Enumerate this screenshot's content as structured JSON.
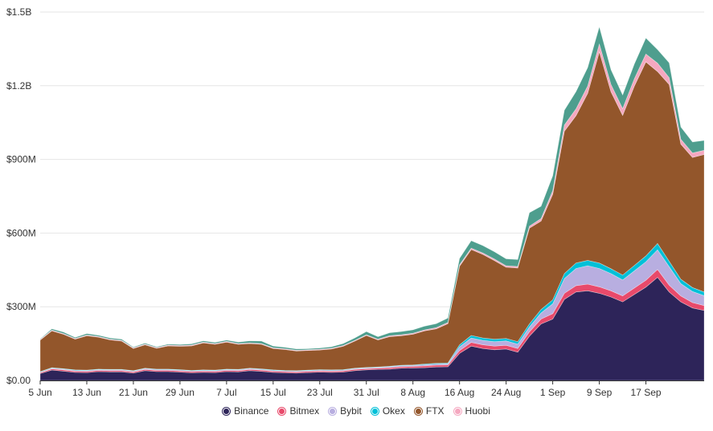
{
  "chart_data": {
    "type": "area",
    "stacked": true,
    "title": "",
    "xlabel": "",
    "ylabel": "",
    "ylim": [
      0,
      1500000000
    ],
    "y_ticks": [
      {
        "value": 0,
        "label": "$0.00"
      },
      {
        "value": 300000000,
        "label": "$300M"
      },
      {
        "value": 600000000,
        "label": "$600M"
      },
      {
        "value": 900000000,
        "label": "$900M"
      },
      {
        "value": 1200000000,
        "label": "$1.2B"
      },
      {
        "value": 1500000000,
        "label": "$1.5B"
      }
    ],
    "x_ticks": [
      {
        "date": "2021-06-05",
        "label": "5 Jun"
      },
      {
        "date": "2021-06-13",
        "label": "13 Jun"
      },
      {
        "date": "2021-06-21",
        "label": "21 Jun"
      },
      {
        "date": "2021-06-29",
        "label": "29 Jun"
      },
      {
        "date": "2021-07-07",
        "label": "7 Jul"
      },
      {
        "date": "2021-07-15",
        "label": "15 Jul"
      },
      {
        "date": "2021-07-23",
        "label": "23 Jul"
      },
      {
        "date": "2021-07-31",
        "label": "31 Jul"
      },
      {
        "date": "2021-08-08",
        "label": "8 Aug"
      },
      {
        "date": "2021-08-16",
        "label": "16 Aug"
      },
      {
        "date": "2021-08-24",
        "label": "24 Aug"
      },
      {
        "date": "2021-09-01",
        "label": "1 Sep"
      },
      {
        "date": "2021-09-09",
        "label": "9 Sep"
      },
      {
        "date": "2021-09-17",
        "label": "17 Sep"
      }
    ],
    "x_range": [
      "2021-06-05",
      "2021-09-27"
    ],
    "legend_position": "bottom-center",
    "units": "M USD",
    "x": [
      "2021-06-05",
      "2021-06-07",
      "2021-06-09",
      "2021-06-11",
      "2021-06-13",
      "2021-06-15",
      "2021-06-17",
      "2021-06-19",
      "2021-06-21",
      "2021-06-23",
      "2021-06-25",
      "2021-06-27",
      "2021-06-29",
      "2021-07-01",
      "2021-07-03",
      "2021-07-05",
      "2021-07-07",
      "2021-07-09",
      "2021-07-11",
      "2021-07-13",
      "2021-07-15",
      "2021-07-17",
      "2021-07-19",
      "2021-07-21",
      "2021-07-23",
      "2021-07-25",
      "2021-07-27",
      "2021-07-29",
      "2021-07-31",
      "2021-08-02",
      "2021-08-04",
      "2021-08-06",
      "2021-08-08",
      "2021-08-10",
      "2021-08-12",
      "2021-08-14",
      "2021-08-16",
      "2021-08-18",
      "2021-08-20",
      "2021-08-22",
      "2021-08-24",
      "2021-08-26",
      "2021-08-28",
      "2021-08-30",
      "2021-09-01",
      "2021-09-03",
      "2021-09-05",
      "2021-09-07",
      "2021-09-09",
      "2021-09-11",
      "2021-09-13",
      "2021-09-15",
      "2021-09-17",
      "2021-09-19",
      "2021-09-21",
      "2021-09-23",
      "2021-09-25",
      "2021-09-27"
    ],
    "series": [
      {
        "name": "Binance",
        "color": "#2d2459",
        "values": [
          28,
          42,
          38,
          33,
          32,
          36,
          35,
          35,
          30,
          40,
          36,
          36,
          34,
          31,
          33,
          32,
          36,
          35,
          40,
          37,
          33,
          31,
          30,
          32,
          34,
          33,
          34,
          40,
          43,
          45,
          46,
          50,
          51,
          52,
          55,
          56,
          110,
          140,
          130,
          125,
          128,
          115,
          180,
          230,
          250,
          330,
          360,
          365,
          355,
          340,
          320,
          350,
          380,
          420,
          360,
          320,
          295,
          285
        ]
      },
      {
        "name": "Bitmex",
        "color": "#e84a6b",
        "values": [
          4,
          5,
          5,
          5,
          5,
          5,
          5,
          5,
          5,
          5,
          5,
          5,
          5,
          5,
          5,
          5,
          5,
          5,
          5,
          5,
          5,
          5,
          5,
          5,
          5,
          5,
          5,
          5,
          5,
          5,
          6,
          6,
          6,
          7,
          7,
          7,
          12,
          15,
          15,
          15,
          15,
          15,
          18,
          20,
          22,
          25,
          26,
          27,
          26,
          25,
          24,
          26,
          28,
          32,
          28,
          24,
          22,
          20
        ]
      },
      {
        "name": "Bybit",
        "color": "#b8aee0",
        "values": [
          2,
          3,
          3,
          3,
          3,
          3,
          3,
          3,
          3,
          3,
          3,
          3,
          3,
          3,
          3,
          3,
          3,
          3,
          3,
          3,
          3,
          3,
          3,
          3,
          3,
          3,
          3,
          3,
          3,
          3,
          4,
          4,
          4,
          5,
          5,
          5,
          15,
          18,
          18,
          18,
          18,
          18,
          20,
          25,
          40,
          60,
          70,
          75,
          75,
          70,
          65,
          70,
          75,
          80,
          75,
          50,
          45,
          40
        ]
      },
      {
        "name": "Okex",
        "color": "#00c0d8",
        "values": [
          2,
          2,
          2,
          2,
          2,
          2,
          2,
          2,
          2,
          2,
          2,
          2,
          2,
          2,
          2,
          2,
          2,
          2,
          2,
          2,
          2,
          2,
          2,
          2,
          2,
          2,
          2,
          2,
          2,
          2,
          2,
          2,
          2,
          3,
          3,
          3,
          8,
          10,
          10,
          10,
          10,
          10,
          12,
          14,
          16,
          20,
          22,
          22,
          22,
          20,
          20,
          22,
          24,
          26,
          22,
          18,
          16,
          15
        ]
      },
      {
        "name": "FTX",
        "color": "#93562b",
        "values": [
          128,
          150,
          140,
          125,
          140,
          130,
          120,
          115,
          90,
          95,
          85,
          95,
          95,
          100,
          110,
          105,
          110,
          102,
          100,
          100,
          87,
          85,
          80,
          80,
          80,
          85,
          95,
          110,
          130,
          110,
          120,
          120,
          125,
          135,
          140,
          160,
          320,
          350,
          340,
          320,
          290,
          300,
          390,
          360,
          430,
          580,
          600,
          680,
          860,
          720,
          650,
          730,
          790,
          700,
          720,
          550,
          530,
          560
        ]
      },
      {
        "name": "Huobi",
        "color": "#f5a8c0",
        "values": [
          3,
          3,
          3,
          3,
          3,
          3,
          3,
          3,
          3,
          3,
          3,
          3,
          3,
          3,
          3,
          3,
          3,
          3,
          3,
          3,
          3,
          3,
          3,
          3,
          3,
          3,
          3,
          3,
          3,
          3,
          4,
          4,
          4,
          4,
          5,
          5,
          6,
          6,
          6,
          6,
          6,
          6,
          8,
          10,
          15,
          25,
          28,
          30,
          32,
          30,
          28,
          30,
          32,
          34,
          28,
          20,
          18,
          17
        ]
      },
      {
        "name": "",
        "color": "#4e9e8e",
        "values": [
          2,
          5,
          6,
          4,
          6,
          5,
          5,
          5,
          3,
          4,
          3,
          4,
          4,
          5,
          5,
          5,
          5,
          6,
          8,
          10,
          7,
          6,
          5,
          4,
          5,
          6,
          8,
          10,
          13,
          10,
          12,
          13,
          14,
          15,
          16,
          18,
          26,
          30,
          30,
          30,
          28,
          28,
          55,
          50,
          60,
          60,
          70,
          75,
          70,
          60,
          55,
          60,
          65,
          55,
          60,
          50,
          45,
          40
        ]
      }
    ]
  }
}
